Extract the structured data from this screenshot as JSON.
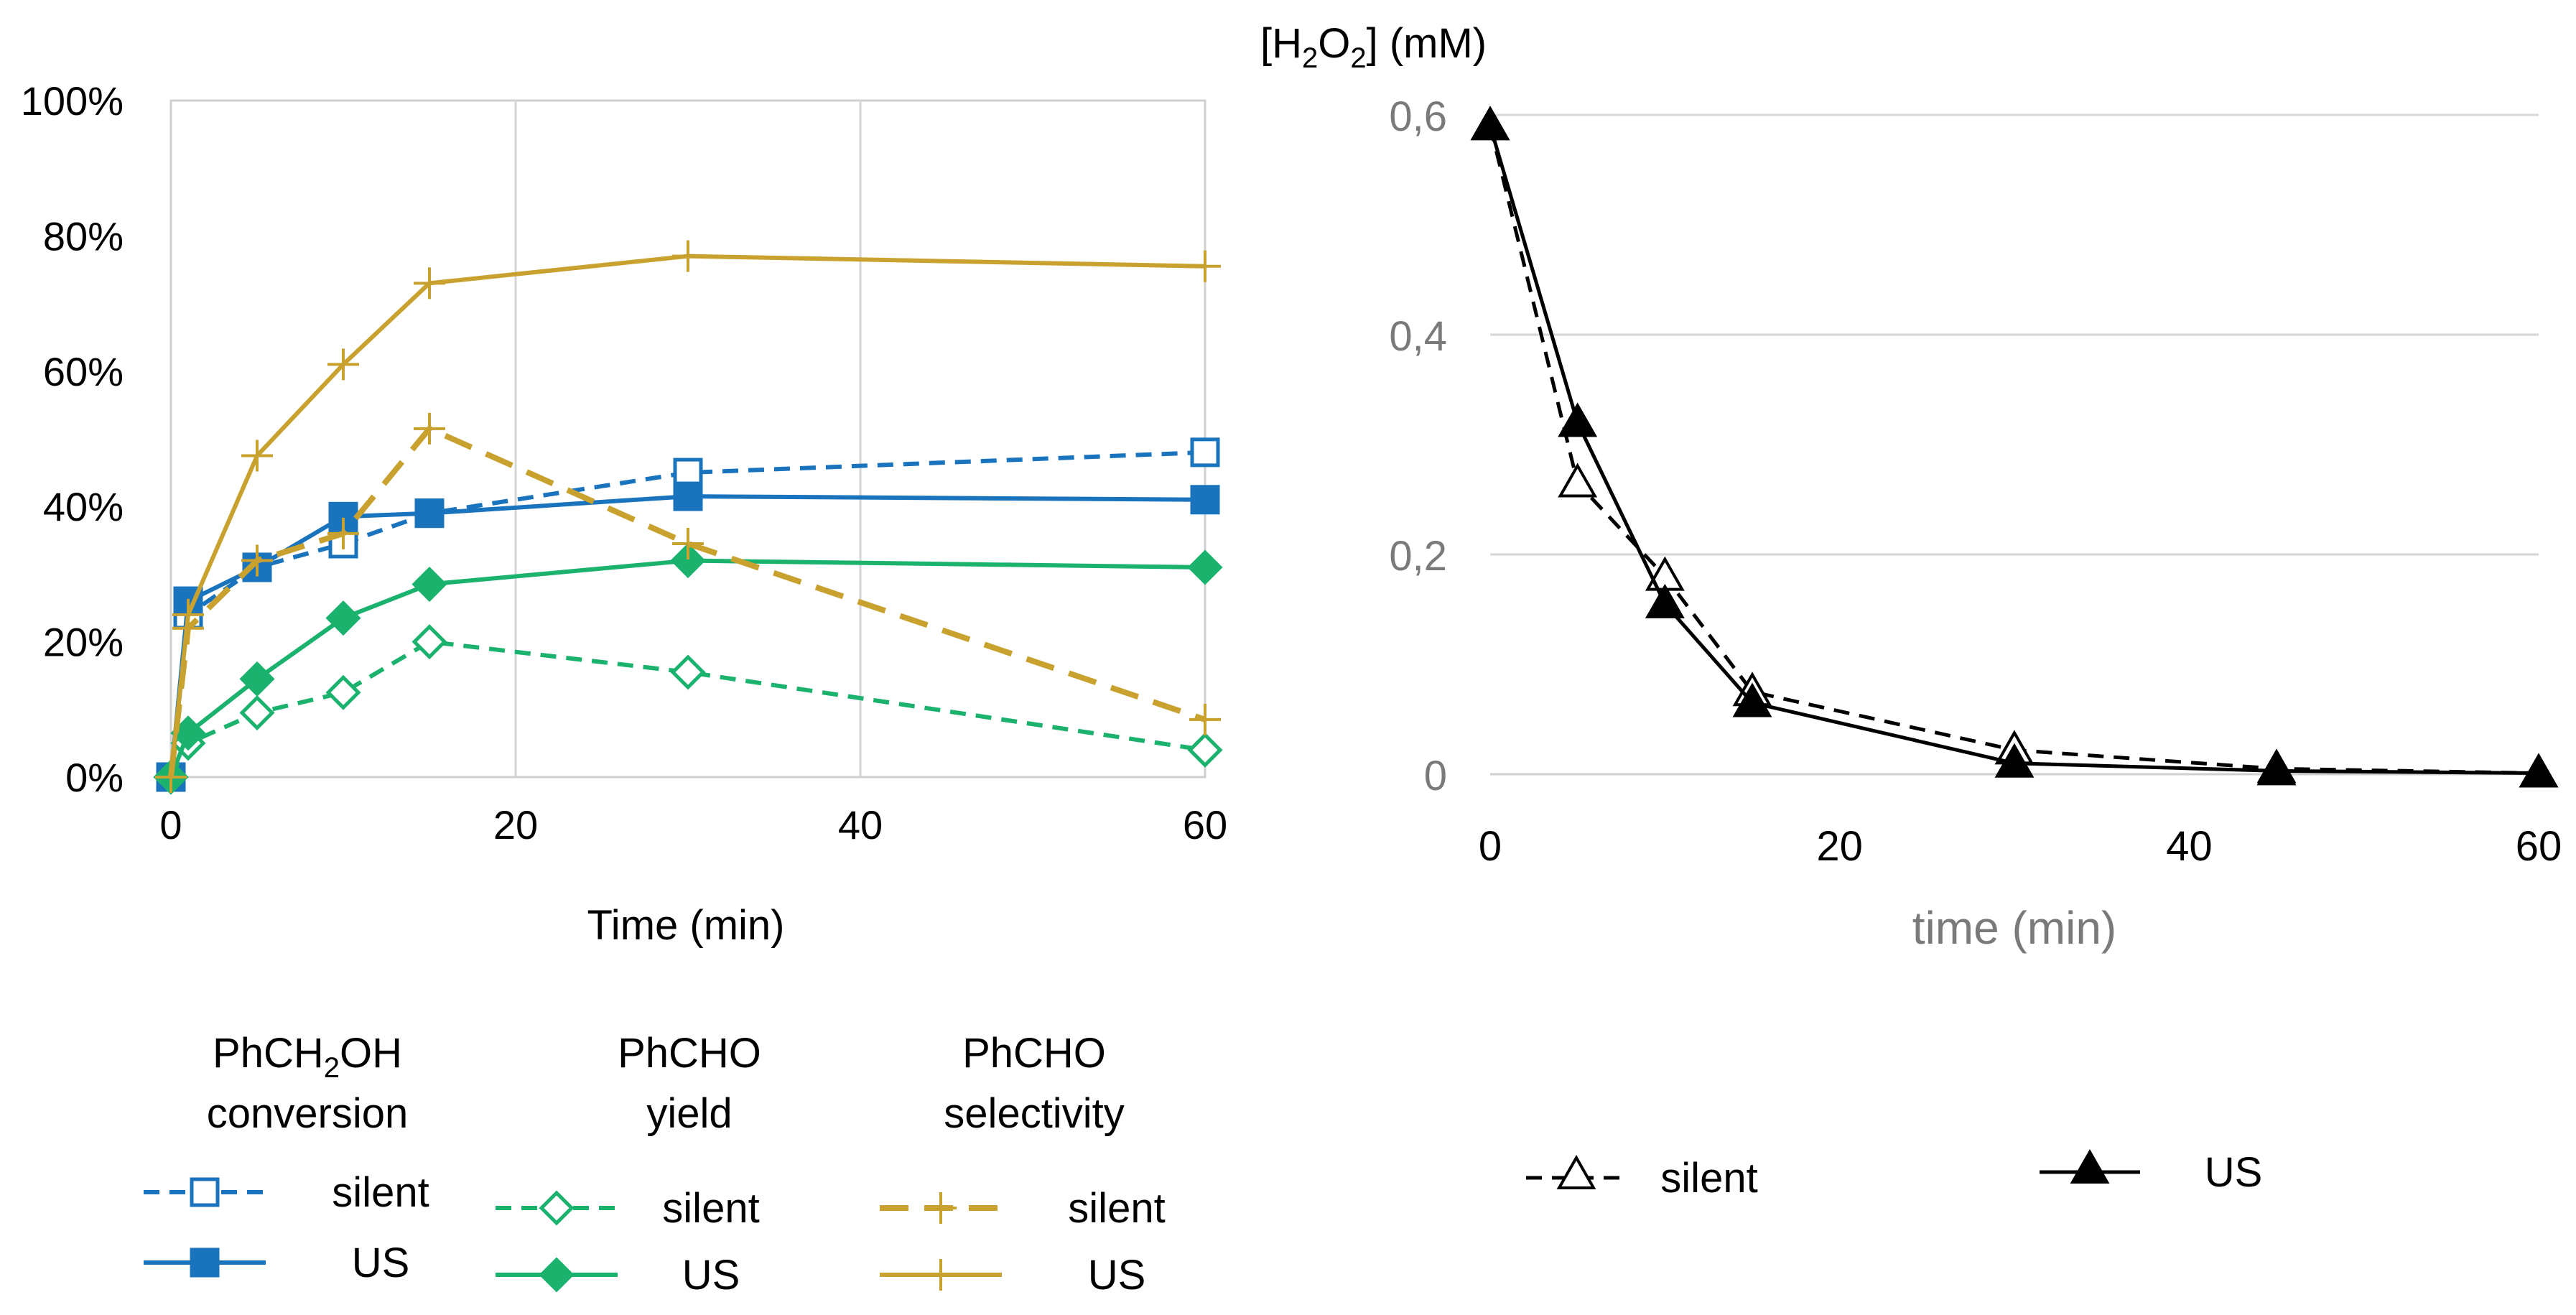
{
  "chart_data": [
    {
      "type": "line",
      "id": "left",
      "xlabel": "Time (min)",
      "ylabel": "",
      "xlim": [
        0,
        60
      ],
      "ylim": [
        0,
        1
      ],
      "xticks": [
        0,
        20,
        40,
        60
      ],
      "xtick_labels": [
        "0",
        "20",
        "40",
        "60"
      ],
      "yticks": [
        0,
        0.2,
        0.4,
        0.6,
        0.8,
        1.0
      ],
      "ytick_labels": [
        "0%",
        "20%",
        "40%",
        "60%",
        "80%",
        "100%"
      ],
      "grid": "vertical",
      "legend_groups": [
        "PhCH₂OH conversion",
        "PhCHO yield",
        "PhCHO selectivity"
      ],
      "series": [
        {
          "name": "silent",
          "group": "PhCH₂OH conversion",
          "color": "#1a74bd",
          "dash": "dashed",
          "marker": "open-square",
          "x": [
            0,
            1,
            5,
            10,
            15,
            30,
            60
          ],
          "values": [
            0.0,
            0.24,
            0.31,
            0.345,
            0.39,
            0.45,
            0.48
          ]
        },
        {
          "name": "US",
          "group": "PhCH₂OH conversion",
          "color": "#1a74bd",
          "dash": "solid",
          "marker": "filled-square",
          "x": [
            0,
            1,
            5,
            10,
            15,
            30,
            60
          ],
          "values": [
            0.0,
            0.26,
            0.31,
            0.385,
            0.39,
            0.415,
            0.41
          ]
        },
        {
          "name": "silent",
          "group": "PhCHO yield",
          "color": "#1bb26e",
          "dash": "dashed",
          "marker": "open-diamond",
          "x": [
            0,
            1,
            5,
            10,
            15,
            30,
            60
          ],
          "values": [
            0.0,
            0.05,
            0.095,
            0.125,
            0.2,
            0.155,
            0.04
          ]
        },
        {
          "name": "US",
          "group": "PhCHO yield",
          "color": "#1bb26e",
          "dash": "solid",
          "marker": "filled-diamond",
          "x": [
            0,
            1,
            5,
            10,
            15,
            30,
            60
          ],
          "values": [
            0.0,
            0.065,
            0.145,
            0.235,
            0.285,
            0.32,
            0.31
          ]
        },
        {
          "name": "silent",
          "group": "PhCHO selectivity",
          "color": "#c9a12f",
          "dash": "long-dash",
          "marker": "plus",
          "x": [
            0,
            1,
            5,
            10,
            15,
            30,
            60
          ],
          "values": [
            0.0,
            0.22,
            0.32,
            0.36,
            0.515,
            0.345,
            0.085
          ]
        },
        {
          "name": "US",
          "group": "PhCHO selectivity",
          "color": "#c9a12f",
          "dash": "solid",
          "marker": "plus",
          "x": [
            0,
            1,
            5,
            10,
            15,
            30,
            60
          ],
          "values": [
            0.0,
            0.24,
            0.475,
            0.61,
            0.73,
            0.77,
            0.755
          ]
        }
      ]
    },
    {
      "type": "line",
      "id": "right",
      "title": "[H₂O₂] (mM)",
      "xlabel": "time (min)",
      "xlim": [
        0,
        60
      ],
      "ylim": [
        0,
        0.6
      ],
      "xticks": [
        0,
        20,
        40,
        60
      ],
      "xtick_labels": [
        "0",
        "20",
        "40",
        "60"
      ],
      "yticks": [
        0,
        0.2,
        0.4,
        0.6
      ],
      "ytick_labels": [
        "0",
        "0,2",
        "0,4",
        "0,6"
      ],
      "grid": "horizontal",
      "series": [
        {
          "name": "silent",
          "color": "#000000",
          "dash": "dashed",
          "marker": "open-triangle",
          "x": [
            0,
            5,
            10,
            15,
            30,
            45,
            60
          ],
          "values": [
            0.59,
            0.265,
            0.18,
            0.075,
            0.022,
            0.005,
            0.001
          ]
        },
        {
          "name": "US",
          "color": "#000000",
          "dash": "solid",
          "marker": "filled-triangle",
          "x": [
            0,
            5,
            10,
            15,
            30,
            45,
            60
          ],
          "values": [
            0.59,
            0.32,
            0.155,
            0.065,
            0.01,
            0.003,
            0.001
          ]
        }
      ]
    }
  ]
}
